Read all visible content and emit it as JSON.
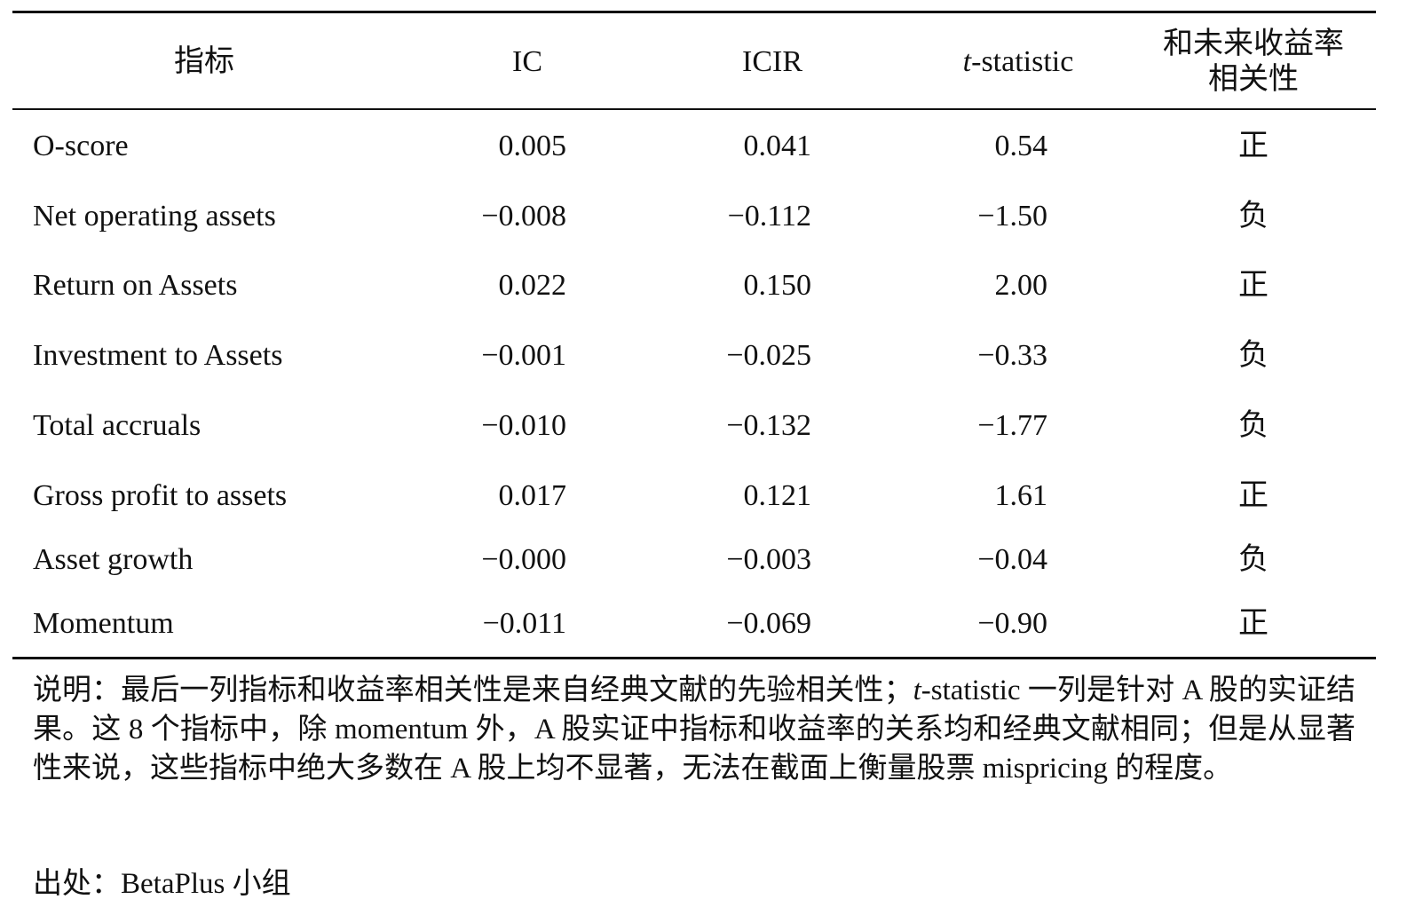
{
  "table": {
    "headers": [
      "指标",
      "IC",
      "ICIR",
      {
        "italic": "t",
        "rest": "-statistic"
      },
      [
        "和未来收益率",
        "相关性"
      ]
    ],
    "rows": [
      [
        "O-score",
        "0.005",
        "0.041",
        "0.54",
        "正"
      ],
      [
        "Net operating assets",
        "−0.008",
        "−0.112",
        "−1.50",
        "负"
      ],
      [
        "Return on Assets",
        "0.022",
        "0.150",
        "2.00",
        "正"
      ],
      [
        "Investment to Assets",
        "−0.001",
        "−0.025",
        "−0.33",
        "负"
      ],
      [
        "Total accruals",
        "−0.010",
        "−0.132",
        "−1.77",
        "负"
      ],
      [
        "Gross profit to assets",
        "0.017",
        "0.121",
        "1.61",
        "正"
      ],
      [
        "Asset growth",
        "−0.000",
        "−0.003",
        "−0.04",
        "负"
      ],
      [
        "Momentum",
        "−0.011",
        "−0.069",
        "−0.90",
        "正"
      ]
    ]
  },
  "note": {
    "before": "说明：最后一列指标和收益率相关性是来自经典文献的先验相关性；",
    "italic": "t",
    "after": "-statistic 一列是针对 A 股的实证结果。这 8 个指标中，除 momentum 外，A 股实证中指标和收益率的关系均和经典文献相同；但是从显著性来说，这些指标中绝大多数在 A 股上均不显著，无法在截面上衡量股票 mispricing 的程度。"
  },
  "source": "出处：BetaPlus 小组"
}
